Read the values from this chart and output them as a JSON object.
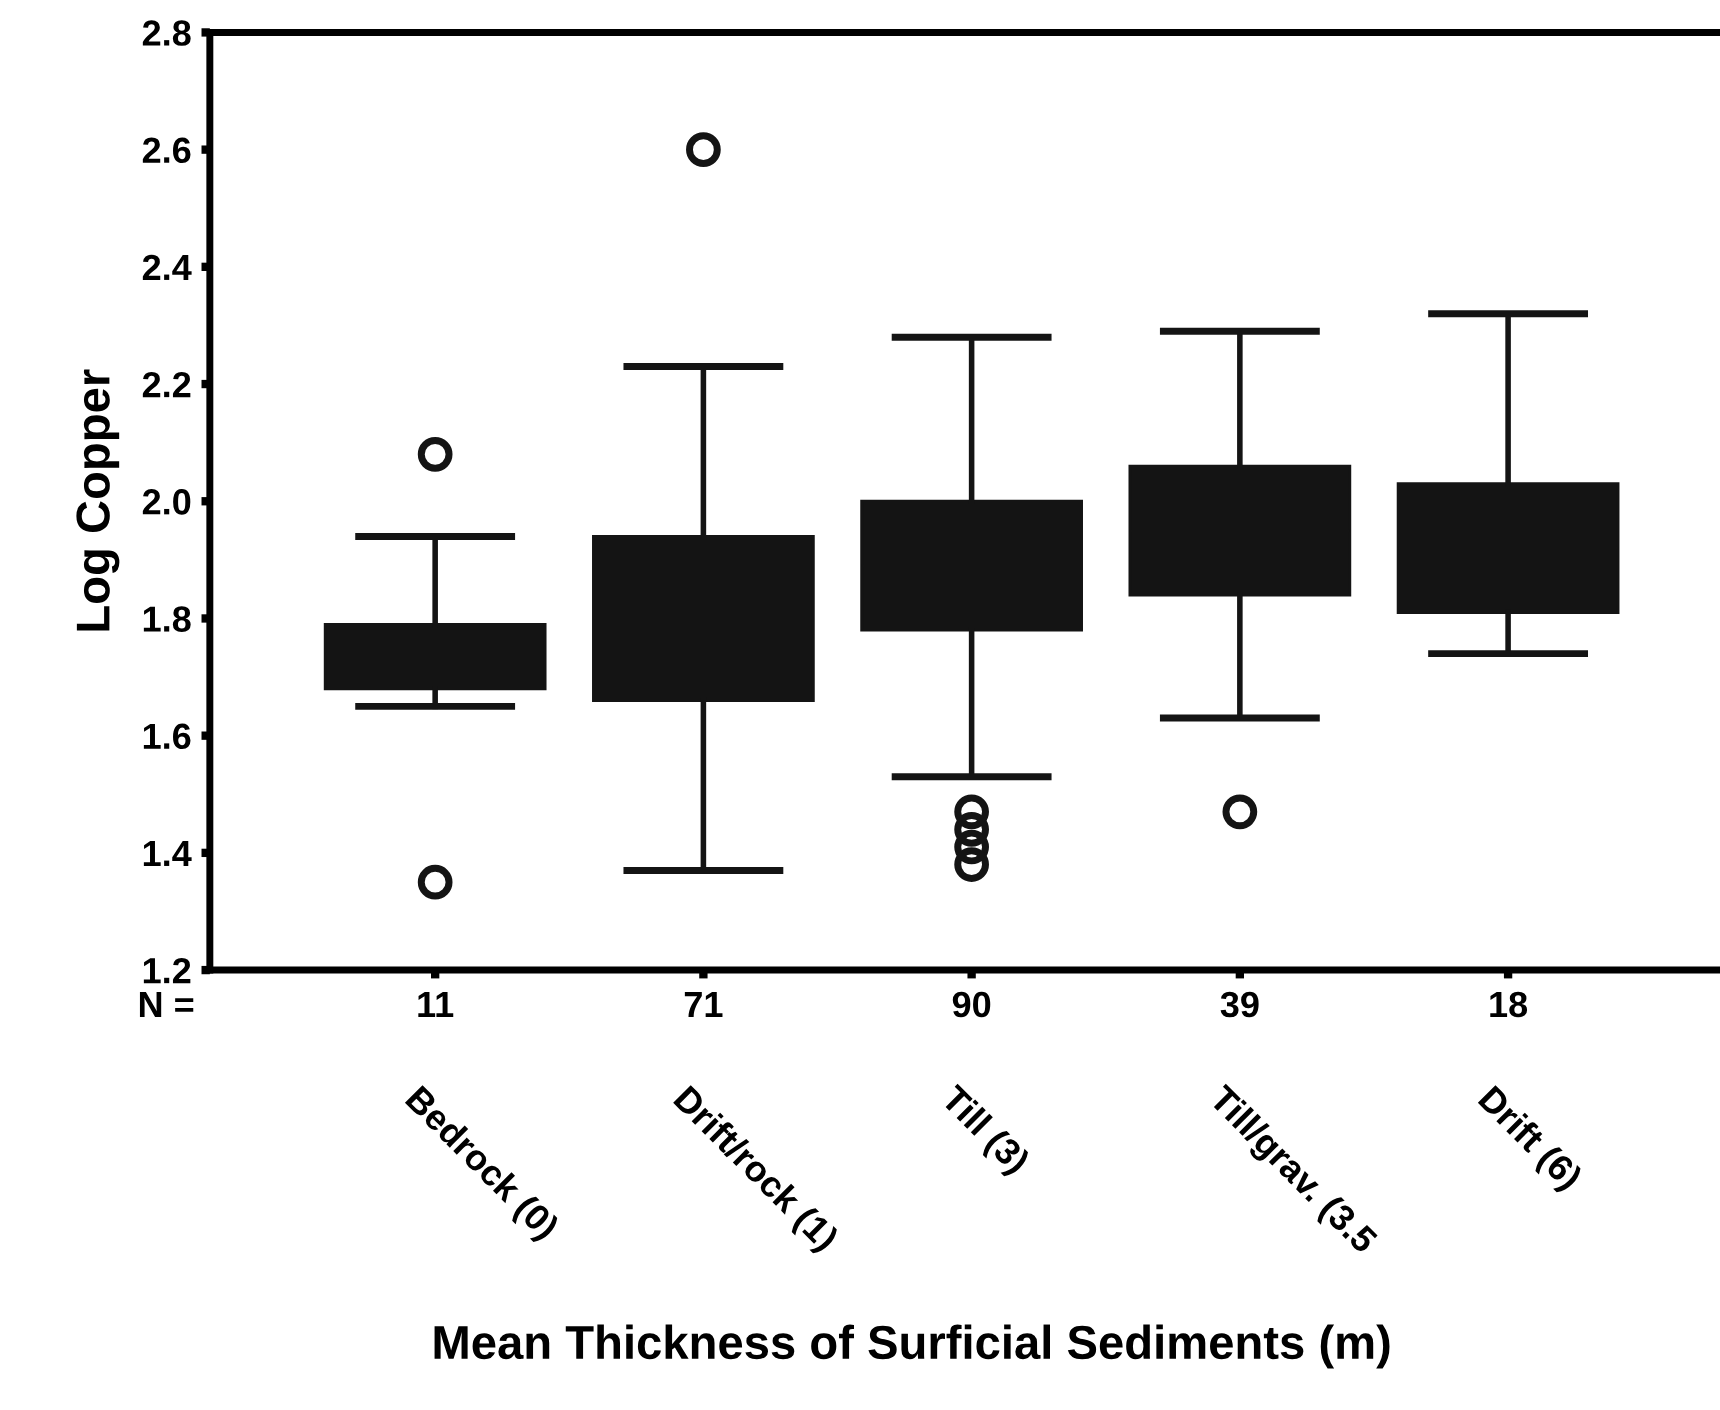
{
  "chart_data": {
    "type": "box",
    "ylabel": "Log Copper",
    "xlabel": "Mean Thickness of Surficial Sediments (m)",
    "categories": [
      "Bedrock (0)",
      "Drift/rock (1)",
      "Till (3)",
      "Till/grav. (3.5",
      "Drift (6)"
    ],
    "boxes": [
      {
        "low": 1.65,
        "q1": 1.68,
        "median": 1.74,
        "q3": 1.79,
        "high": 1.94,
        "outliers": [
          2.08,
          1.35
        ]
      },
      {
        "low": 1.37,
        "q1": 1.66,
        "median": 1.8,
        "q3": 1.94,
        "high": 2.23,
        "outliers": [
          2.6
        ]
      },
      {
        "low": 1.53,
        "q1": 1.78,
        "median": 1.89,
        "q3": 2.0,
        "high": 2.28,
        "outliers": [
          1.47,
          1.44,
          1.41,
          1.38
        ]
      },
      {
        "low": 1.63,
        "q1": 1.84,
        "median": 1.95,
        "q3": 2.06,
        "high": 2.29,
        "outliers": [
          1.47
        ]
      },
      {
        "low": 1.74,
        "q1": 1.81,
        "median": 1.92,
        "q3": 2.03,
        "high": 2.32
      }
    ],
    "color": "#141414",
    "ylim": [
      1.2,
      2.8
    ],
    "yticks": [
      1.2,
      1.4,
      1.6,
      1.8,
      {
        "value": 2,
        "label": "2.0"
      },
      2.2,
      2.4,
      2.6,
      2.8
    ],
    "annotations": [
      "N =",
      "11",
      "71",
      "90",
      "39",
      "18"
    ],
    "grid": false
  }
}
